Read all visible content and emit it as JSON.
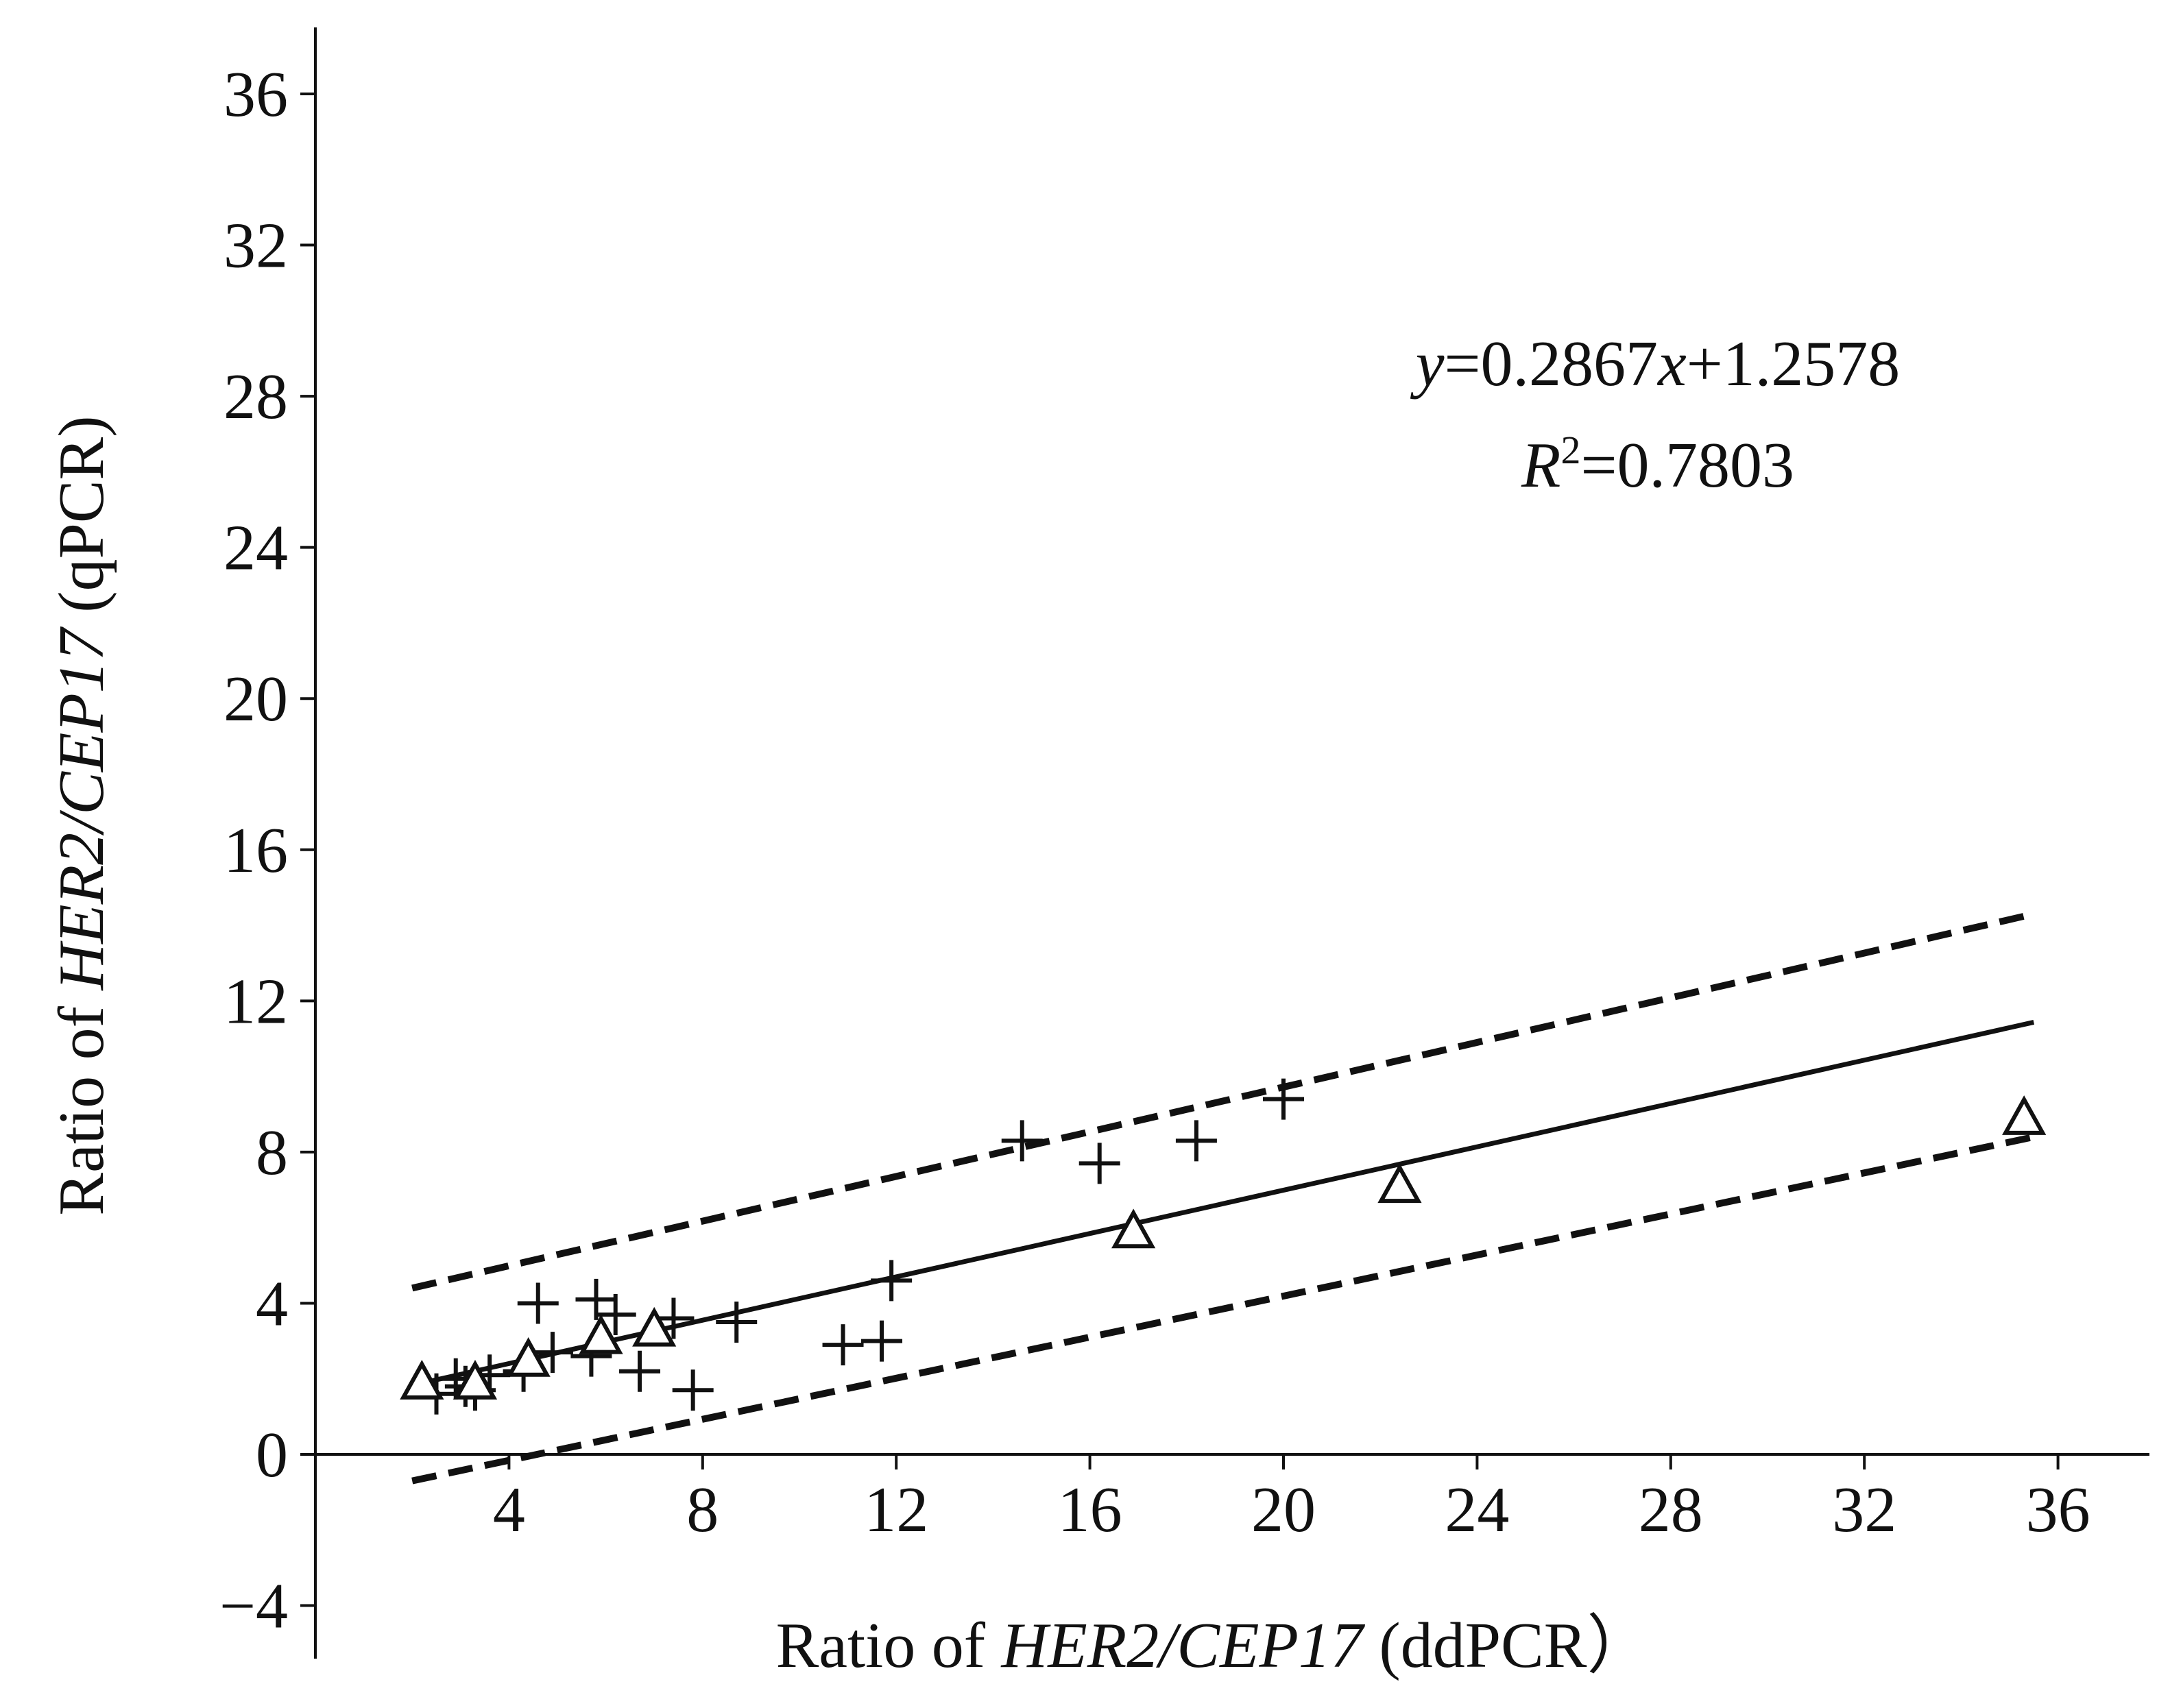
{
  "chart_data": {
    "type": "scatter",
    "title": "",
    "xlabel": {
      "prefix": "Ratio of ",
      "italic": "HER2/CEP17",
      "suffix": " (ddPCR）"
    },
    "ylabel": {
      "prefix": "Ratio of ",
      "italic": "HER2/CEP17",
      "suffix": " (qPCR)"
    },
    "xlim": [
      0,
      37.5
    ],
    "ylim": [
      -5,
      37.5
    ],
    "x_ticks": [
      4,
      8,
      12,
      16,
      20,
      24,
      28,
      32,
      36
    ],
    "y_ticks": [
      -4,
      0,
      4,
      8,
      12,
      16,
      20,
      24,
      28,
      32,
      36
    ],
    "x_tick_labels": [
      "4",
      "8",
      "12",
      "16",
      "20",
      "24",
      "28",
      "32",
      "36"
    ],
    "y_tick_labels": [
      "−4",
      "0",
      "4",
      "8",
      "12",
      "16",
      "20",
      "24",
      "28",
      "32",
      "36"
    ],
    "grid": false,
    "annotation": {
      "equation_y": "y",
      "equation_mid": "=0.2867",
      "equation_x": "x",
      "equation_end": "+1.2578",
      "r2_label": "R",
      "r2_sup": "2",
      "r2_value": "=0.7803"
    },
    "regression": {
      "slope": 0.2867,
      "intercept": 1.2578,
      "x_range": [
        2.0,
        35.5
      ]
    },
    "confidence_bands": [
      {
        "x": [
          2.0,
          35.5
        ],
        "y": [
          4.4,
          14.3
        ]
      },
      {
        "x": [
          2.0,
          35.5
        ],
        "y": [
          -0.7,
          8.4
        ]
      }
    ],
    "series": [
      {
        "marker": "plus",
        "points": [
          [
            2.5,
            1.6
          ],
          [
            2.9,
            2.0
          ],
          [
            3.1,
            1.8
          ],
          [
            3.3,
            1.7
          ],
          [
            3.6,
            2.1
          ],
          [
            4.3,
            2.2
          ],
          [
            4.6,
            4.0
          ],
          [
            4.9,
            2.7
          ],
          [
            5.7,
            2.6
          ],
          [
            5.8,
            4.1
          ],
          [
            6.2,
            3.7
          ],
          [
            6.7,
            2.2
          ],
          [
            7.4,
            3.6
          ],
          [
            7.8,
            1.7
          ],
          [
            8.7,
            3.5
          ],
          [
            10.9,
            2.9
          ],
          [
            11.7,
            3.0
          ],
          [
            11.9,
            4.6
          ],
          [
            14.6,
            8.3
          ],
          [
            16.2,
            7.7
          ],
          [
            18.2,
            8.3
          ],
          [
            20.0,
            9.4
          ]
        ]
      },
      {
        "marker": "triangle",
        "points": [
          [
            2.2,
            1.9
          ],
          [
            3.3,
            1.9
          ],
          [
            4.4,
            2.5
          ],
          [
            5.9,
            3.1
          ],
          [
            7.0,
            3.3
          ],
          [
            16.9,
            5.9
          ],
          [
            22.4,
            7.1
          ],
          [
            35.3,
            8.9
          ]
        ]
      }
    ]
  }
}
